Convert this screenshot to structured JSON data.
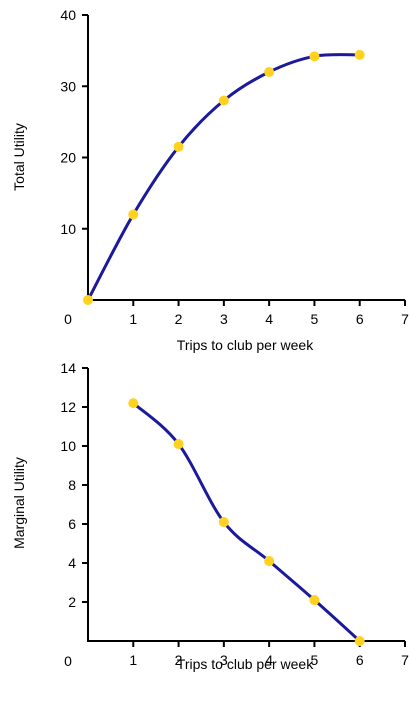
{
  "chart_data": [
    {
      "type": "line",
      "xlabel": "Trips to club per week",
      "ylabel": "Total Utility",
      "xlim": [
        0,
        7
      ],
      "ylim": [
        0,
        40
      ],
      "xticks": [
        "1",
        "2",
        "3",
        "4",
        "5",
        "6",
        "7"
      ],
      "yticks": [
        "10",
        "20",
        "30",
        "40"
      ],
      "origin_label": "0",
      "grid": false,
      "series": [
        {
          "x": [
            0,
            1,
            2,
            3,
            4,
            5,
            6
          ],
          "y": [
            0,
            12,
            21.5,
            28,
            32,
            34.2,
            34.4
          ]
        }
      ]
    },
    {
      "type": "line",
      "xlabel": "Trips to club per week",
      "ylabel": "Marginal Utility",
      "xlim": [
        0,
        7
      ],
      "ylim": [
        0,
        14
      ],
      "xticks": [
        "1",
        "2",
        "3",
        "4",
        "5",
        "6",
        "7"
      ],
      "yticks": [
        "2",
        "4",
        "6",
        "8",
        "10",
        "12",
        "14"
      ],
      "origin_label": "0",
      "grid": false,
      "series": [
        {
          "x": [
            1,
            2,
            3,
            4,
            5,
            6
          ],
          "y": [
            12.2,
            10.1,
            6.1,
            4.1,
            2.1,
            0
          ]
        }
      ]
    }
  ],
  "colors": {
    "line": "#1a1a9a",
    "marker": "#ffd21f",
    "axis": "#000000"
  }
}
